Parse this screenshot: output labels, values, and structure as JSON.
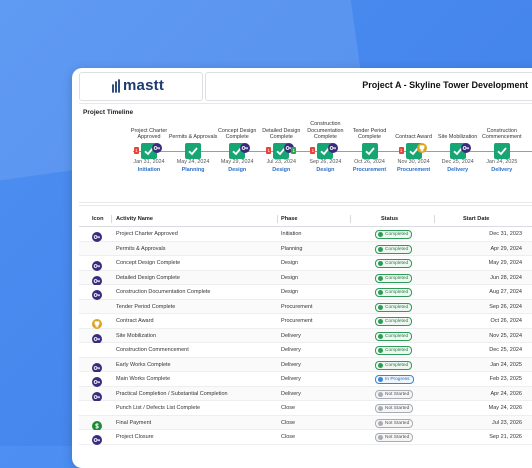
{
  "header": {
    "logo": "mastt",
    "title": "Project A - Skyline Tower Development"
  },
  "timeline": {
    "title": "Project Timeline",
    "milestones": [
      {
        "label": "Project Charter Approved",
        "date": "Jan 31, 2024",
        "phase": "Initiation",
        "icon": "key",
        "badge_left": 1
      },
      {
        "label": "Permits & Approvals",
        "date": "May 24, 2024",
        "phase": "Planning",
        "icon": null
      },
      {
        "label": "Concept Design Complete",
        "date": "May 29, 2024",
        "phase": "Design",
        "icon": "key"
      },
      {
        "label": "Detailed Design Complete",
        "date": "Jul 23, 2024",
        "phase": "Design",
        "icon": "key",
        "badge_left": 1,
        "badge_right": 1
      },
      {
        "label": "Construction Documentation Complete",
        "date": "Sep 26, 2024",
        "phase": "Design",
        "icon": "key",
        "badge_left": 1
      },
      {
        "label": "Tender Period Complete",
        "date": "Oct 26, 2024",
        "phase": "Procurement",
        "icon": null
      },
      {
        "label": "Contract Award",
        "date": "Nov 30, 2024",
        "phase": "Procurement",
        "icon": "trophy",
        "badge_left": 1
      },
      {
        "label": "Site Mobilization",
        "date": "Dec 25, 2024",
        "phase": "Delivery",
        "icon": "key"
      },
      {
        "label": "Construction Commencement",
        "date": "Jan 24, 2025",
        "phase": "Delivery",
        "icon": null
      }
    ]
  },
  "table": {
    "columns": [
      "Icon",
      "Activity Name",
      "Phase",
      "Status",
      "Start Date"
    ],
    "rows": [
      {
        "icon": "key",
        "activity": "Project Charter Approved",
        "phase": "Initiation",
        "status": "Completed",
        "start": "Dec 31, 2023"
      },
      {
        "icon": null,
        "activity": "Permits & Approvals",
        "phase": "Planning",
        "status": "Completed",
        "start": "Apr 29, 2024"
      },
      {
        "icon": "key",
        "activity": "Concept Design Complete",
        "phase": "Design",
        "status": "Completed",
        "start": "May 29, 2024"
      },
      {
        "icon": "key",
        "activity": "Detailed Design Complete",
        "phase": "Design",
        "status": "Completed",
        "start": "Jun 28, 2024"
      },
      {
        "icon": "key",
        "activity": "Construction Documentation Complete",
        "phase": "Design",
        "status": "Completed",
        "start": "Aug 27, 2024"
      },
      {
        "icon": null,
        "activity": "Tender Period Complete",
        "phase": "Procurement",
        "status": "Completed",
        "start": "Sep 26, 2024"
      },
      {
        "icon": "trophy",
        "activity": "Contract Award",
        "phase": "Procurement",
        "status": "Completed",
        "start": "Oct 26, 2024"
      },
      {
        "icon": "key",
        "activity": "Site Mobilization",
        "phase": "Delivery",
        "status": "Completed",
        "start": "Nov 25, 2024"
      },
      {
        "icon": null,
        "activity": "Construction Commencement",
        "phase": "Delivery",
        "status": "Completed",
        "start": "Dec 25, 2024"
      },
      {
        "icon": "key",
        "activity": "Early Works Complete",
        "phase": "Delivery",
        "status": "Completed",
        "start": "Jan 24, 2025"
      },
      {
        "icon": "key",
        "activity": "Main Works Complete",
        "phase": "Delivery",
        "status": "In Progress",
        "start": "Feb 23, 2025"
      },
      {
        "icon": "key",
        "activity": "Practical Completion / Substantial Completion",
        "phase": "Delivery",
        "status": "Not Started",
        "start": "Apr 24, 2026"
      },
      {
        "icon": null,
        "activity": "Punch List / Defects List Complete",
        "phase": "Close",
        "status": "Not Started",
        "start": "May 24, 2026"
      },
      {
        "icon": "dollar",
        "activity": "Final Payment",
        "phase": "Close",
        "status": "Not Started",
        "start": "Jul 23, 2026"
      },
      {
        "icon": "key",
        "activity": "Project Closure",
        "phase": "Close",
        "status": "Not Started",
        "start": "Sep 21, 2026"
      }
    ]
  }
}
